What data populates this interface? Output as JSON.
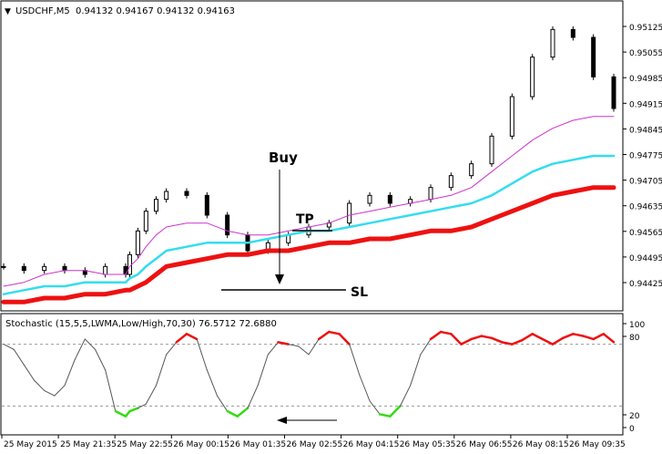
{
  "window": {
    "symbol": "USDCHF,M5",
    "quote": "0.94132 0.94167 0.94132 0.94163"
  },
  "indicator": {
    "title": "Stochastic (15,5,5,LWMA,Low/High,70,30) 76.5712 72.6880"
  },
  "annotations": {
    "buy": "Buy",
    "tp": "TP",
    "sl": "SL"
  },
  "colors": {
    "candle": "#000000",
    "fast_ma": "#cc33cc",
    "mid_ma": "#33ddee",
    "slow_ma": "#ee1111",
    "stoch_neutral": "#555555",
    "stoch_over": "#ee1111",
    "stoch_under": "#33dd11"
  },
  "chart_data": [
    {
      "type": "line",
      "price_ticks": [
        "0.95125",
        "0.95055",
        "0.94985",
        "0.94915",
        "0.94845",
        "0.94775",
        "0.94705",
        "0.94635",
        "0.94565",
        "0.94495",
        "0.94425"
      ],
      "ylim": [
        0.9441,
        0.9513
      ],
      "time_ticks": [
        "25 May 2015",
        "25 May 21:35",
        "25 May 22:55",
        "26 May 00:15",
        "26 May 01:35",
        "26 May 02:55",
        "26 May 04:15",
        "26 May 05:35",
        "26 May 06:55",
        "26 May 08:15",
        "26 May 09:35"
      ],
      "x": [
        0,
        10,
        20,
        30,
        40,
        50,
        60,
        62,
        66,
        70,
        75,
        80,
        90,
        100,
        110,
        120,
        130,
        140,
        150,
        160,
        170,
        180,
        190,
        200,
        210,
        220,
        230,
        240,
        250,
        260,
        270,
        280,
        290,
        300
      ],
      "close": [
        0.9452,
        0.9451,
        0.9452,
        0.9451,
        0.945,
        0.9452,
        0.945,
        0.9455,
        0.9461,
        0.9466,
        0.9469,
        0.9471,
        0.947,
        0.9465,
        0.946,
        0.9456,
        0.9458,
        0.946,
        0.9462,
        0.9463,
        0.9468,
        0.947,
        0.9468,
        0.9469,
        0.9472,
        0.9475,
        0.9478,
        0.9485,
        0.9495,
        0.9505,
        0.9512,
        0.951,
        0.95,
        0.9492
      ],
      "series": [
        {
          "values": [
            0.9447,
            0.9448,
            0.945,
            0.9451,
            0.9451,
            0.945,
            0.945,
            0.9452,
            0.9454,
            0.9457,
            0.946,
            0.9462,
            0.9463,
            0.9463,
            0.9461,
            0.946,
            0.946,
            0.9461,
            0.9462,
            0.9463,
            0.9465,
            0.9466,
            0.9467,
            0.9468,
            0.9469,
            0.947,
            0.9472,
            0.9476,
            0.948,
            0.9484,
            0.9487,
            0.9489,
            0.949,
            0.949
          ]
        },
        {
          "values": [
            0.9445,
            0.9446,
            0.9447,
            0.9447,
            0.9448,
            0.9448,
            0.9448,
            0.9449,
            0.945,
            0.9452,
            0.9454,
            0.9456,
            0.9457,
            0.9458,
            0.9458,
            0.9458,
            0.9459,
            0.946,
            0.9461,
            0.9461,
            0.9462,
            0.9463,
            0.9464,
            0.9465,
            0.9466,
            0.9467,
            0.9468,
            0.947,
            0.9473,
            0.9476,
            0.9478,
            0.9479,
            0.948,
            0.948
          ]
        },
        {
          "values": [
            0.9443,
            0.9443,
            0.9444,
            0.9444,
            0.9445,
            0.9445,
            0.9446,
            0.9446,
            0.9447,
            0.9448,
            0.945,
            0.9452,
            0.9453,
            0.9454,
            0.9455,
            0.9455,
            0.9456,
            0.9456,
            0.9457,
            0.9458,
            0.9458,
            0.9459,
            0.9459,
            0.946,
            0.9461,
            0.9461,
            0.9462,
            0.9464,
            0.9466,
            0.9468,
            0.947,
            0.9471,
            0.9472,
            0.9472
          ]
        }
      ]
    },
    {
      "type": "line",
      "level_ticks": [
        "100",
        "80",
        "20",
        "0"
      ],
      "levels": [
        80,
        20
      ],
      "ylim": [
        0,
        100
      ],
      "x": [
        0,
        5,
        10,
        15,
        20,
        25,
        30,
        35,
        40,
        45,
        50,
        55,
        60,
        62,
        66,
        70,
        75,
        80,
        85,
        90,
        95,
        100,
        105,
        110,
        115,
        120,
        125,
        130,
        135,
        140,
        145,
        150,
        155,
        160,
        165,
        170,
        175,
        180,
        185,
        190,
        195,
        200,
        205,
        210,
        215,
        220,
        225,
        230,
        235,
        240,
        245,
        250,
        255,
        260,
        265,
        270,
        275,
        280,
        285,
        290,
        295,
        300
      ],
      "values": [
        80,
        75,
        60,
        45,
        35,
        30,
        40,
        65,
        85,
        75,
        55,
        15,
        10,
        15,
        18,
        22,
        40,
        70,
        82,
        90,
        85,
        55,
        30,
        15,
        10,
        18,
        40,
        70,
        82,
        80,
        78,
        70,
        85,
        92,
        90,
        80,
        50,
        25,
        12,
        10,
        20,
        40,
        70,
        85,
        92,
        90,
        80,
        85,
        88,
        86,
        82,
        80,
        84,
        90,
        85,
        80,
        86,
        90,
        88,
        85,
        90,
        82
      ]
    }
  ]
}
